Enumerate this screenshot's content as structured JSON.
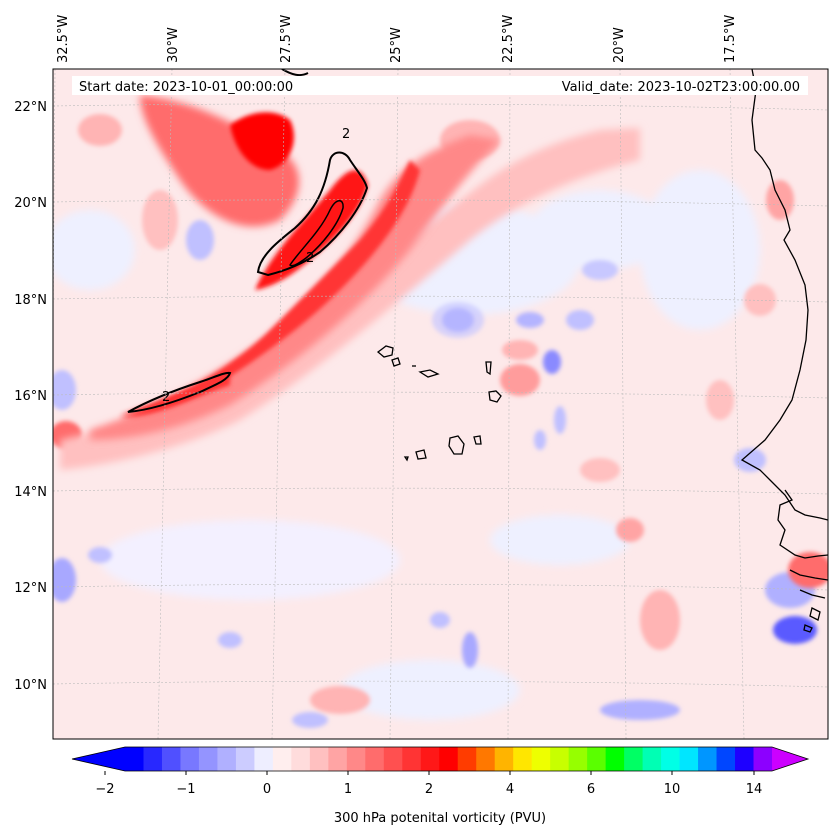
{
  "map": {
    "start_date": "Start date: 2023-10-01_00:00:00",
    "valid_date": "Valid_date: 2023-10-02T23:00:00.00",
    "lon_labels": [
      "32.5°W",
      "30°W",
      "27.5°W",
      "25°W",
      "22.5°W",
      "20°W",
      "17.5°W"
    ],
    "lat_labels": [
      "22°N",
      "20°N",
      "18°N",
      "16°N",
      "14°N",
      "12°N",
      "10°N"
    ],
    "contour_label": "2"
  },
  "colorbar": {
    "title": "300 hPa potenital vorticity (PVU)",
    "tick_labels": [
      "−2",
      "−1",
      "0",
      "1",
      "2",
      "4",
      "6",
      "10",
      "14"
    ],
    "colors": [
      "#0000ff",
      "#2828ff",
      "#5050ff",
      "#7878ff",
      "#9494ff",
      "#b0b0ff",
      "#ccccff",
      "#eeeeff",
      "#ffeeee",
      "#ffdcdc",
      "#ffc0c0",
      "#ffa4a4",
      "#ff8888",
      "#ff6c6c",
      "#ff5050",
      "#ff3434",
      "#ff1818",
      "#ff0000",
      "#ff3c00",
      "#ff7800",
      "#ffb400",
      "#ffe600",
      "#eeff00",
      "#c8ff00",
      "#96ff00",
      "#5aff00",
      "#00ff00",
      "#00ff64",
      "#00ffb4",
      "#00ffe6",
      "#00e6ff",
      "#0096ff",
      "#0046ff",
      "#1e00ff",
      "#8c00ff"
    ],
    "over_color": "#cc00ff",
    "under_color": "#0000ff"
  },
  "colors": {
    "field_base": "#fde9ea",
    "pv_high": "#ff0000",
    "pv_low": "#8a8aff",
    "coastline": "#000000"
  }
}
